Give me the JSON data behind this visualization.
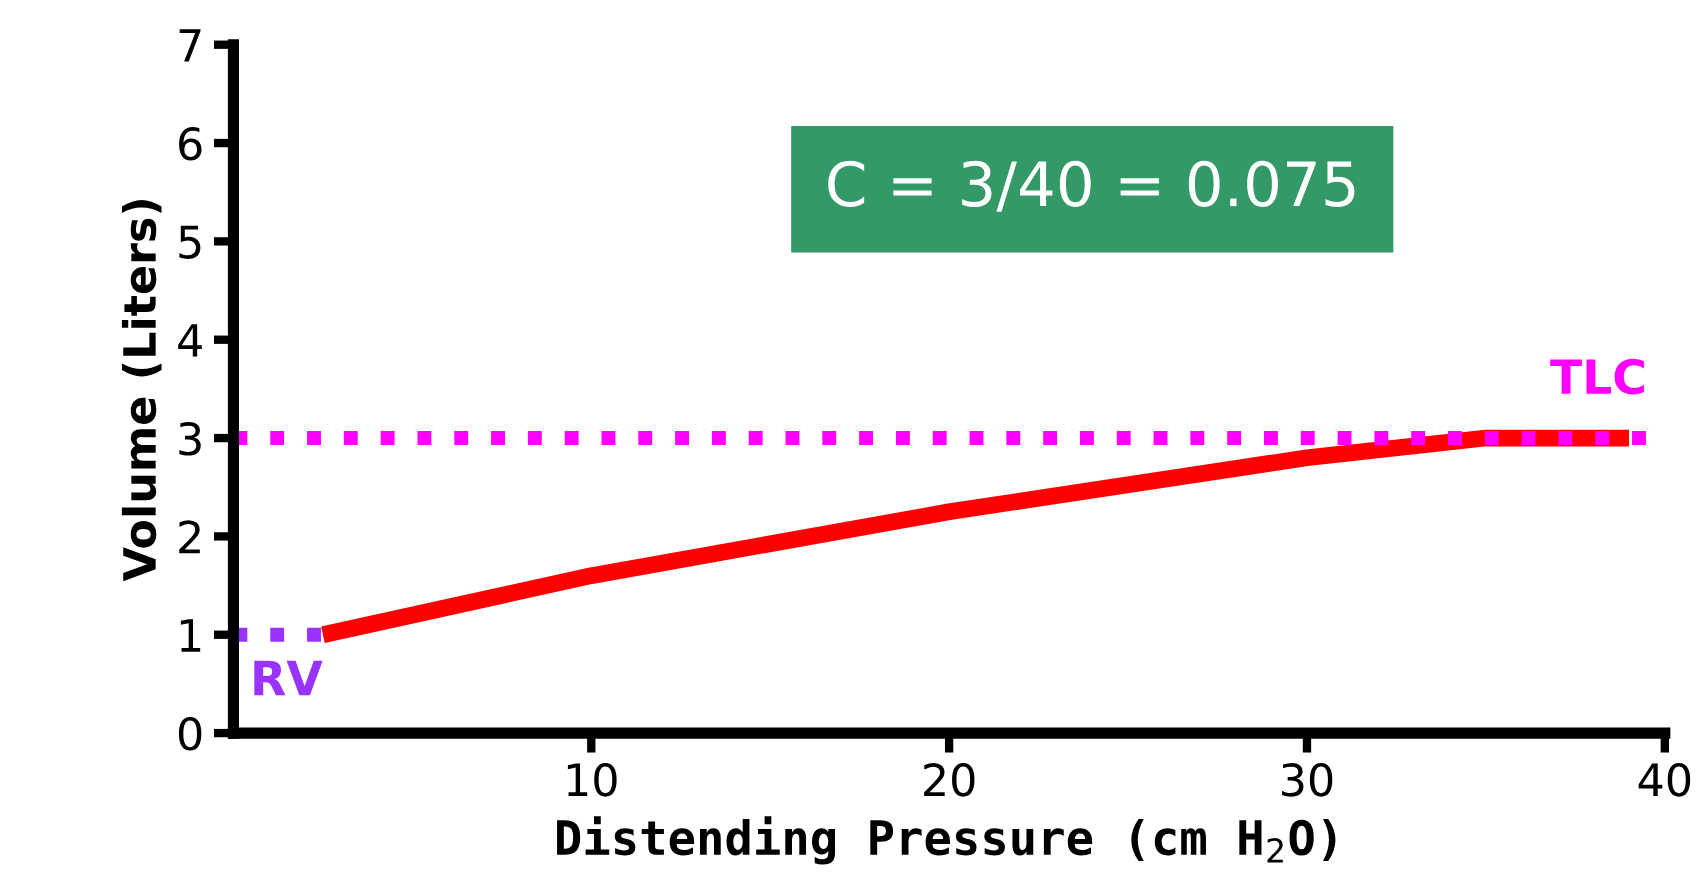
{
  "chart_data": {
    "type": "line",
    "xlabel": "Distending Pressure (cm H$_{2}$O)",
    "ylabel": "Volume (Liters)",
    "xlim": [
      0,
      40
    ],
    "xticks": [
      10,
      20,
      30,
      40
    ],
    "ylim": [
      0,
      7
    ],
    "yticks": [
      0,
      1,
      2,
      3,
      4,
      5,
      6,
      7
    ],
    "grid": false,
    "legend": false,
    "series": [
      {
        "x": [
          2.5,
          10,
          20,
          30,
          35,
          39
        ],
        "values": [
          1,
          1.6,
          2.25,
          2.8,
          3,
          3
        ],
        "color": "#ff0000",
        "line_style": "solid"
      },
      {
        "name": "RV",
        "x": [
          0,
          2.5
        ],
        "values": [
          1,
          1
        ],
        "color": "#9933ff",
        "line_style": "dotted"
      }
    ],
    "ref_lines": [
      {
        "axis": "y",
        "value": 3,
        "label": "TLC",
        "color": "#ff00ff",
        "line_style": "dotted"
      }
    ],
    "annotations": [
      "C = 3/40 = 0.075"
    ]
  }
}
